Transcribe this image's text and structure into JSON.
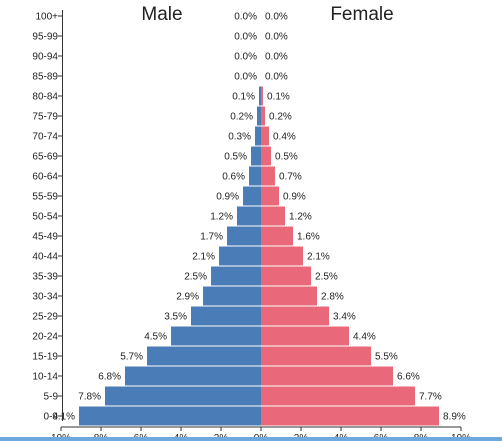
{
  "chart_data": {
    "type": "bar",
    "orientation": "horizontal",
    "layout": "population-pyramid",
    "title_left": "Male",
    "title_right": "Female",
    "categories": [
      "100+",
      "95-99",
      "90-94",
      "85-89",
      "80-84",
      "75-79",
      "70-74",
      "65-69",
      "60-64",
      "55-59",
      "50-54",
      "45-49",
      "40-44",
      "35-39",
      "30-34",
      "25-29",
      "20-24",
      "15-19",
      "10-14",
      "5-9",
      "0-4"
    ],
    "series": [
      {
        "name": "Male",
        "values": [
          0.0,
          0.0,
          0.0,
          0.0,
          0.1,
          0.2,
          0.3,
          0.5,
          0.6,
          0.9,
          1.2,
          1.7,
          2.1,
          2.5,
          2.9,
          3.5,
          4.5,
          5.7,
          6.8,
          7.8,
          9.1
        ],
        "labels": [
          "0.0%",
          "0.0%",
          "0.0%",
          "0.0%",
          "0.1%",
          "0.2%",
          "0.3%",
          "0.5%",
          "0.6%",
          "0.9%",
          "1.2%",
          "1.7%",
          "2.1%",
          "2.5%",
          "2.9%",
          "3.5%",
          "4.5%",
          "5.7%",
          "6.8%",
          "7.8%",
          "9.1%"
        ]
      },
      {
        "name": "Female",
        "values": [
          0.0,
          0.0,
          0.0,
          0.0,
          0.1,
          0.2,
          0.4,
          0.5,
          0.7,
          0.9,
          1.2,
          1.6,
          2.1,
          2.5,
          2.8,
          3.4,
          4.4,
          5.5,
          6.6,
          7.7,
          8.9
        ],
        "labels": [
          "0.0%",
          "0.0%",
          "0.0%",
          "0.0%",
          "0.1%",
          "0.2%",
          "0.4%",
          "0.5%",
          "0.7%",
          "0.9%",
          "1.2%",
          "1.6%",
          "2.1%",
          "2.5%",
          "2.8%",
          "3.4%",
          "4.4%",
          "5.5%",
          "6.6%",
          "7.7%",
          "8.9%"
        ]
      }
    ],
    "xlim": [
      -10,
      10
    ],
    "x_ticks": [
      -10,
      -8,
      -6,
      -4,
      -2,
      0,
      2,
      4,
      6,
      8,
      10
    ],
    "x_tick_labels": [
      "10%",
      "8%",
      "6%",
      "4%",
      "2%",
      "0%",
      "2%",
      "4%",
      "6%",
      "8%",
      "10%"
    ],
    "colors": {
      "male": "#4a7db8",
      "female": "#e9697a",
      "separator": "#ffffff"
    },
    "grid": false,
    "legend": "none"
  }
}
